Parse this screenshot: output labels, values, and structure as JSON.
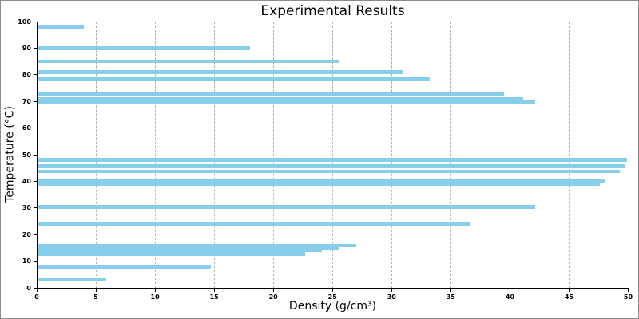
{
  "chart_data": {
    "type": "bar",
    "orientation": "horizontal",
    "title": "Experimental Results",
    "xlabel": "Density (g/cm³)",
    "ylabel": "Temperature (°C)",
    "xlim": [
      0,
      50
    ],
    "ylim": [
      0,
      100
    ],
    "x_ticks": [
      0,
      5,
      10,
      15,
      20,
      25,
      30,
      35,
      40,
      45,
      50
    ],
    "y_ticks": [
      0,
      10,
      20,
      30,
      40,
      50,
      60,
      70,
      80,
      90,
      100
    ],
    "grid": "vertical-dashed",
    "legend": "none",
    "bar_color": "#87CEEB",
    "bar_height": 1.4,
    "points": [
      {
        "density": 4.0,
        "temperature": 98
      },
      {
        "density": 18.0,
        "temperature": 90
      },
      {
        "density": 25.6,
        "temperature": 85
      },
      {
        "density": 30.9,
        "temperature": 81
      },
      {
        "density": 33.2,
        "temperature": 78.5
      },
      {
        "density": 39.5,
        "temperature": 73
      },
      {
        "density": 41.1,
        "temperature": 71
      },
      {
        "density": 42.1,
        "temperature": 70
      },
      {
        "density": 49.9,
        "temperature": 48
      },
      {
        "density": 49.7,
        "temperature": 45.7
      },
      {
        "density": 49.3,
        "temperature": 43.7
      },
      {
        "density": 48.0,
        "temperature": 40
      },
      {
        "density": 47.6,
        "temperature": 39
      },
      {
        "density": 42.1,
        "temperature": 30.4
      },
      {
        "density": 36.6,
        "temperature": 24.1
      },
      {
        "density": 27.0,
        "temperature": 15.9
      },
      {
        "density": 25.5,
        "temperature": 15.0
      },
      {
        "density": 24.1,
        "temperature": 14.1
      },
      {
        "density": 22.7,
        "temperature": 12.8
      },
      {
        "density": 14.7,
        "temperature": 8.0
      },
      {
        "density": 5.9,
        "temperature": 3.3
      }
    ]
  }
}
